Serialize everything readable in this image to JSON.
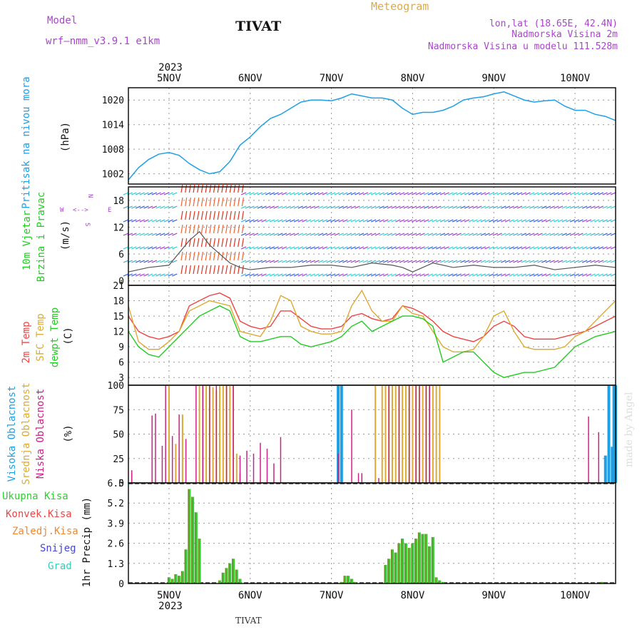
{
  "header": {
    "model_label": "Model",
    "model_name": "wrf—nmm_v3.9.1  e1km",
    "station": "TIVAT",
    "product": "Meteogram",
    "lonlat": "lon,lat (18.65E, 42.4N)",
    "elevation": "Nadmorska Visina 2m",
    "model_elevation": "Nadmorska Visina u modelu 111.528m",
    "footer_station": "TIVAT",
    "watermark": "made by Angel"
  },
  "time_axis": {
    "year": "2023",
    "days": [
      "5NOV",
      "6NOV",
      "7NOV",
      "8NOV",
      "9NOV",
      "10NOV"
    ],
    "start_hour": 12,
    "end_hour": 156
  },
  "colors": {
    "pressure": "#1ea0e6",
    "wind": "#33cc33",
    "temp2m": "#ee4444",
    "sfc_temp": "#ddaa33",
    "dewpt": "#22cc22",
    "cloud_high": "#1ea0e6",
    "cloud_mid": "#ddaa33",
    "cloud_low": "#cc2288",
    "precip_total": "#33cc33",
    "precip_conv": "#ee4444",
    "precip_frz": "#ee8833",
    "precip_snow": "#4444dd",
    "precip_graupel": "#33ccbb",
    "header_model": "#aa44cc",
    "header_product": "#ddaa44"
  },
  "chart_data": [
    {
      "type": "line",
      "panel": "pressure",
      "ylabel": [
        "Pritisak na nivou mora",
        "(hPa)"
      ],
      "yticks": [
        1002,
        1008,
        1014,
        1020
      ],
      "ylim": [
        999.5,
        1023
      ],
      "series": [
        {
          "name": "Pritisak na nivou mora",
          "x": [
            12,
            15,
            18,
            21,
            24,
            27,
            30,
            33,
            36,
            39,
            42,
            45,
            48,
            51,
            54,
            57,
            60,
            63,
            66,
            69,
            72,
            75,
            78,
            81,
            84,
            87,
            90,
            93,
            96,
            99,
            102,
            105,
            108,
            111,
            114,
            117,
            120,
            123,
            126,
            129,
            132,
            135,
            138,
            141,
            144,
            147,
            150,
            153,
            156
          ],
          "values": [
            1000.5,
            1003.5,
            1005.5,
            1006.8,
            1007.2,
            1006.5,
            1004.5,
            1003.0,
            1002.0,
            1002.5,
            1005.0,
            1009.0,
            1011.0,
            1013.5,
            1015.5,
            1016.5,
            1018.0,
            1019.5,
            1020.0,
            1020.0,
            1019.8,
            1020.5,
            1021.5,
            1021.0,
            1020.5,
            1020.5,
            1020.0,
            1018.0,
            1016.5,
            1017.0,
            1017.0,
            1017.5,
            1018.5,
            1020.0,
            1020.5,
            1020.8,
            1021.5,
            1022.0,
            1021.0,
            1020.0,
            1019.5,
            1019.8,
            1020.0,
            1018.5,
            1017.5,
            1017.5,
            1016.5,
            1016.0,
            1015.0
          ]
        }
      ]
    },
    {
      "type": "line",
      "panel": "wind",
      "ylabel": [
        "10m Vjetar",
        "Brzina i Pravac",
        "(m/s)"
      ],
      "direction_legend": [
        "N",
        "W",
        "E",
        "S",
        "<-->"
      ],
      "yticks": [
        0,
        6,
        12,
        18
      ],
      "ylim": [
        -1,
        21
      ],
      "series": [
        {
          "name": "10m Vjetar",
          "x": [
            12,
            18,
            24,
            30,
            33,
            36,
            39,
            42,
            45,
            48,
            54,
            60,
            66,
            72,
            78,
            84,
            90,
            93,
            96,
            99,
            102,
            108,
            114,
            120,
            126,
            132,
            138,
            144,
            150,
            156
          ],
          "values": [
            2,
            3,
            3.5,
            9,
            11,
            8,
            6,
            4,
            3,
            2.5,
            3,
            3,
            3.5,
            3.5,
            3,
            4,
            3.5,
            3,
            2,
            3,
            4,
            3,
            3.5,
            3,
            3,
            3.5,
            2.5,
            3,
            3.5,
            3
          ]
        }
      ]
    },
    {
      "type": "line",
      "panel": "temperature",
      "ylabel": [
        "2m Temp",
        "SFC Temp",
        "dewpt Temp",
        "(C)"
      ],
      "yticks": [
        3,
        6,
        9,
        12,
        15,
        18,
        21
      ],
      "ylim": [
        1.5,
        21
      ],
      "x": [
        12,
        15,
        18,
        21,
        24,
        27,
        30,
        33,
        36,
        39,
        42,
        45,
        48,
        51,
        54,
        57,
        60,
        63,
        66,
        69,
        72,
        75,
        78,
        81,
        84,
        87,
        90,
        93,
        96,
        99,
        102,
        105,
        108,
        111,
        114,
        117,
        120,
        123,
        126,
        129,
        132,
        135,
        138,
        141,
        144,
        147,
        150,
        153,
        156
      ],
      "series": [
        {
          "name": "2m Temp",
          "values": [
            15,
            12,
            11,
            10.5,
            11,
            12,
            17,
            18,
            19,
            19.5,
            18.5,
            14,
            13,
            12.5,
            13,
            16,
            16,
            14.5,
            13,
            12.5,
            12.5,
            13,
            15,
            15.5,
            14.5,
            14,
            14.5,
            17,
            16.5,
            15.5,
            14,
            12,
            11,
            10.5,
            10,
            11,
            13,
            14,
            13,
            11,
            10.5,
            10.5,
            10.5,
            11,
            11.5,
            12,
            13,
            14,
            15
          ]
        },
        {
          "name": "SFC Temp",
          "values": [
            17,
            10,
            8.5,
            8.5,
            10,
            12,
            16,
            17,
            18,
            17.5,
            17,
            12,
            11.5,
            11,
            14,
            19,
            18,
            13,
            12,
            11.5,
            11.5,
            12,
            17,
            20,
            16,
            14,
            14,
            17,
            15.5,
            15,
            12,
            9,
            8,
            8,
            8.5,
            11,
            15,
            16,
            12,
            9,
            8.5,
            8.5,
            8.5,
            9,
            11,
            12,
            14,
            16,
            18
          ]
        },
        {
          "name": "dewpt Temp",
          "values": [
            12,
            9,
            7.5,
            7,
            9,
            11,
            13,
            15,
            16,
            17,
            16,
            11,
            10,
            10,
            10.5,
            11,
            11,
            9.5,
            9,
            9.5,
            10,
            11,
            13,
            14,
            12,
            13,
            14,
            15,
            15,
            14.5,
            13,
            6,
            7,
            8,
            8,
            6,
            4,
            3,
            3.5,
            4,
            4,
            4.5,
            5,
            7,
            9,
            10,
            11,
            11.5,
            12
          ]
        }
      ]
    },
    {
      "type": "bar",
      "panel": "cloud",
      "ylabel": [
        "Visoka Oblacnost",
        "Srednja Oblacnost",
        "Niska Oblacnost",
        "(%)"
      ],
      "yticks": [
        0,
        25,
        50,
        75,
        100
      ],
      "ylim": [
        0,
        100
      ],
      "series": [
        {
          "name": "Visoka Oblacnost",
          "x": [
            74,
            75,
            153,
            154,
            155,
            155.5,
            156
          ],
          "values": [
            100,
            100,
            28,
            100,
            37,
            100,
            100
          ]
        },
        {
          "name": "Srednja Oblacnost",
          "x": [
            24,
            26,
            28,
            33,
            34,
            35,
            36,
            37,
            38,
            39,
            40,
            41,
            42,
            43,
            44,
            45,
            85,
            87,
            88,
            89,
            90,
            91,
            92,
            93,
            94,
            95,
            96,
            97,
            98,
            99,
            100,
            101,
            102,
            103,
            104
          ],
          "values": [
            100,
            40,
            70,
            100,
            100,
            100,
            100,
            98,
            95,
            100,
            100,
            100,
            100,
            100,
            30,
            10,
            100,
            100,
            100,
            100,
            100,
            100,
            100,
            100,
            100,
            100,
            100,
            100,
            100,
            100,
            100,
            100,
            100,
            100,
            100
          ]
        },
        {
          "name": "Niska Oblacnost",
          "x": [
            13,
            19,
            20,
            22,
            23,
            25,
            27,
            29,
            32,
            34,
            36,
            38,
            41,
            43,
            45,
            47,
            49,
            51,
            53,
            55,
            57,
            74,
            78,
            80,
            81,
            86,
            89,
            92,
            95,
            97,
            98,
            100,
            101,
            148,
            151
          ],
          "values": [
            13,
            69,
            71,
            38,
            100,
            48,
            70,
            45,
            100,
            100,
            100,
            100,
            100,
            100,
            28,
            33,
            30,
            41,
            35,
            20,
            47,
            30,
            75,
            10,
            10,
            5,
            100,
            100,
            100,
            100,
            100,
            100,
            100,
            68,
            52
          ]
        }
      ]
    },
    {
      "type": "bar",
      "panel": "precip",
      "ylabel": [
        "Ukupna Kisa",
        "Konvek.Kisa",
        "Zaledj.Kisa",
        "Snijeg",
        "Grad",
        "1hr Precip (mm)"
      ],
      "yticks": [
        0,
        1.3,
        2.6,
        3.9,
        5.2,
        6.5
      ],
      "ylim": [
        0,
        6.5
      ],
      "series": [
        {
          "name": "Ukupna Kisa",
          "x": [
            24,
            25,
            26,
            27,
            28,
            29,
            30,
            31,
            32,
            33,
            39,
            40,
            41,
            42,
            43,
            44,
            45,
            75,
            76,
            77,
            78,
            79,
            88,
            89,
            90,
            91,
            92,
            93,
            94,
            95,
            96,
            97,
            98,
            99,
            100,
            101,
            102,
            103,
            104,
            105,
            152
          ],
          "values": [
            0.4,
            0.3,
            0.6,
            0.5,
            0.8,
            2.2,
            6.1,
            5.6,
            4.6,
            2.9,
            0.2,
            0.7,
            1.0,
            1.3,
            1.6,
            0.9,
            0.3,
            0.1,
            0.5,
            0.5,
            0.3,
            0.1,
            1.2,
            1.6,
            2.2,
            2.0,
            2.6,
            2.9,
            2.6,
            2.3,
            2.6,
            2.9,
            3.3,
            3.2,
            3.2,
            2.4,
            3.0,
            0.4,
            0.2,
            0.1,
            0.1
          ]
        }
      ]
    }
  ]
}
